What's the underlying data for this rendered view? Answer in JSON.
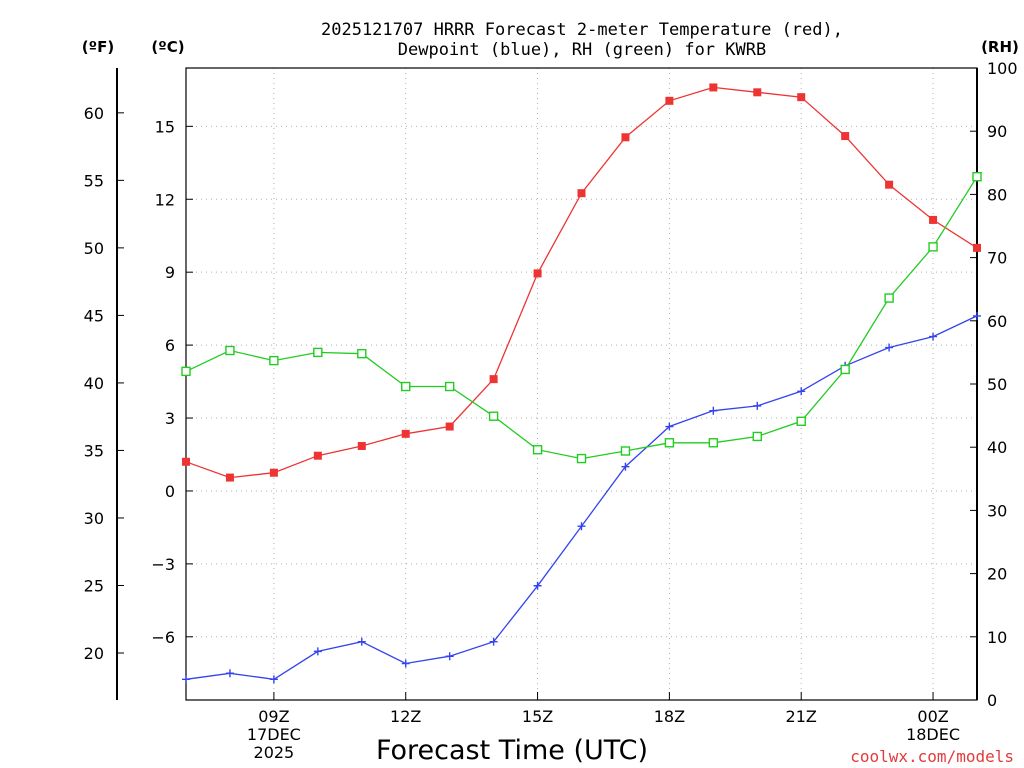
{
  "chart_data": {
    "type": "line",
    "title_line1": "2025121707 HRRR Forecast 2-meter Temperature (red),",
    "title_line2": "Dewpoint (blue), RH (green) for KWRB",
    "xlabel": "Forecast Time (UTC)",
    "credit": "coolwx.com/models",
    "units": {
      "fahrenheit": "(ºF)",
      "celsius": "(ºC)",
      "rh": "(RH)"
    },
    "x_hours": [
      7,
      8,
      9,
      10,
      11,
      12,
      13,
      14,
      15,
      16,
      17,
      18,
      19,
      20,
      21,
      22,
      23,
      24,
      25
    ],
    "xlim": [
      7,
      25
    ],
    "x_ticks": [
      {
        "hour": 9,
        "lines": [
          "09Z",
          "17DEC",
          "2025"
        ]
      },
      {
        "hour": 12,
        "lines": [
          "12Z"
        ]
      },
      {
        "hour": 15,
        "lines": [
          "15Z"
        ]
      },
      {
        "hour": 18,
        "lines": [
          "18Z"
        ]
      },
      {
        "hour": 21,
        "lines": [
          "21Z"
        ]
      },
      {
        "hour": 24,
        "lines": [
          "00Z",
          "18DEC"
        ]
      }
    ],
    "celsius_axis": {
      "ylim": [
        -8.6,
        17.4
      ],
      "ticks": [
        -6,
        -3,
        0,
        3,
        6,
        9,
        12,
        15
      ],
      "tick_labels": [
        "−6",
        "−3",
        "0",
        "3",
        "6",
        "9",
        "12",
        "15"
      ]
    },
    "fahrenheit_axis": {
      "ticks": [
        20,
        25,
        30,
        35,
        40,
        45,
        50,
        55,
        60
      ],
      "tick_labels": [
        "20",
        "25",
        "30",
        "35",
        "40",
        "45",
        "50",
        "55",
        "60"
      ]
    },
    "rh_axis": {
      "ylim": [
        0,
        100
      ],
      "ticks": [
        0,
        10,
        20,
        30,
        40,
        50,
        60,
        70,
        80,
        90,
        100
      ],
      "tick_labels": [
        "0",
        "10",
        "20",
        "30",
        "40",
        "50",
        "60",
        "70",
        "80",
        "90",
        "100"
      ]
    },
    "series": [
      {
        "name": "Temperature",
        "unit": "C",
        "color": "#ee3333",
        "marker": "filled-square",
        "values": [
          1.2,
          0.55,
          0.75,
          1.45,
          1.85,
          2.35,
          2.65,
          4.6,
          8.95,
          12.25,
          14.55,
          16.05,
          16.6,
          16.4,
          16.2,
          14.6,
          12.6,
          11.15,
          10.0
        ]
      },
      {
        "name": "Dewpoint",
        "unit": "C",
        "color": "#3344ee",
        "marker": "plus",
        "values": [
          -7.75,
          -7.5,
          -7.75,
          -6.6,
          -6.2,
          -7.1,
          -6.8,
          -6.2,
          -3.9,
          -1.45,
          1.0,
          2.65,
          3.3,
          3.5,
          4.1,
          5.15,
          5.9,
          6.35,
          7.2
        ]
      },
      {
        "name": "RH",
        "unit": "%",
        "color": "#22cc22",
        "marker": "open-square",
        "values": [
          52.0,
          55.3,
          53.7,
          55.0,
          54.8,
          49.6,
          49.6,
          44.9,
          39.6,
          38.2,
          39.4,
          40.7,
          40.7,
          41.7,
          44.1,
          52.3,
          63.6,
          71.7,
          82.8
        ]
      }
    ]
  }
}
